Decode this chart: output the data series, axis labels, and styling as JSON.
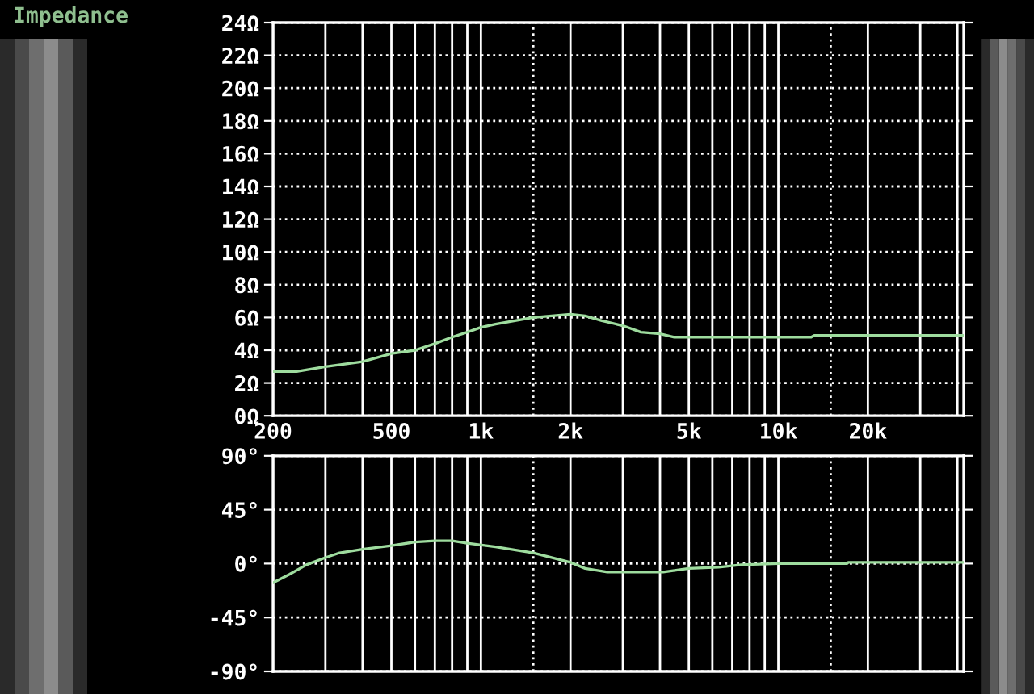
{
  "chart_data": [
    {
      "type": "line",
      "title": "Impedance",
      "log": "x",
      "grid": true,
      "x": [
        200,
        240,
        300,
        400,
        500,
        600,
        700,
        800,
        900,
        1000,
        1120,
        1500,
        1730,
        2000,
        2240,
        2550,
        3000,
        3450,
        4000,
        4470,
        6310,
        10000,
        12900,
        13200,
        42000
      ],
      "series": [
        {
          "color": "#9edc9e",
          "values": [
            2.7,
            2.7,
            3.0,
            3.3,
            3.8,
            4.0,
            4.4,
            4.8,
            5.1,
            5.4,
            5.6,
            6.0,
            6.1,
            6.2,
            6.1,
            5.8,
            5.5,
            5.1,
            5.0,
            4.8,
            4.8,
            4.8,
            4.8,
            4.9,
            4.9
          ]
        }
      ],
      "xlim": [
        200,
        42000
      ],
      "xticks": [
        200,
        {
          "value": 300,
          "label": null
        },
        {
          "value": 400,
          "label": null
        },
        500,
        {
          "value": 600,
          "label": null
        },
        {
          "value": 700,
          "label": null
        },
        {
          "value": 800,
          "label": null
        },
        {
          "value": 900,
          "label": null
        },
        {
          "value": 1000,
          "label": "1k"
        },
        {
          "value": 2000,
          "label": "2k"
        },
        {
          "value": 3000,
          "label": null
        },
        {
          "value": 4000,
          "label": null
        },
        {
          "value": 5000,
          "label": "5k"
        },
        {
          "value": 6000,
          "label": null
        },
        {
          "value": 7000,
          "label": null
        },
        {
          "value": 8000,
          "label": null
        },
        {
          "value": 9000,
          "label": null
        },
        {
          "value": 10000,
          "label": "10k"
        },
        {
          "value": 20000,
          "label": "20k"
        },
        {
          "value": 30000,
          "label": null
        },
        {
          "value": 40000,
          "label": null
        }
      ],
      "ylim": [
        0,
        24
      ],
      "yticks": [
        {
          "value": 0,
          "label": "0Ω"
        },
        {
          "value": 2,
          "label": "2Ω"
        },
        {
          "value": 4,
          "label": "4Ω"
        },
        {
          "value": 6,
          "label": "6Ω"
        },
        {
          "value": 8,
          "label": "8Ω"
        },
        {
          "value": 10,
          "label": "10Ω"
        },
        {
          "value": 12,
          "label": "12Ω"
        },
        {
          "value": 14,
          "label": "14Ω"
        },
        {
          "value": 16,
          "label": "16Ω"
        },
        {
          "value": 18,
          "label": "18Ω"
        },
        {
          "value": 20,
          "label": "20Ω"
        },
        {
          "value": 22,
          "label": "22Ω"
        },
        {
          "value": 24,
          "label": "24Ω"
        }
      ],
      "ref_lines": [
        {
          "axis": "x",
          "value": 1500,
          "color": "#ffffff",
          "line_style": "dotted"
        },
        {
          "axis": "x",
          "value": 15000,
          "color": "#ffffff",
          "line_style": "dotted"
        }
      ]
    },
    {
      "type": "line",
      "log": "x",
      "grid": true,
      "tick_labels": "y",
      "x": [
        200,
        227,
        259,
        300,
        335,
        400,
        500,
        600,
        700,
        800,
        900,
        1120,
        1500,
        2000,
        2240,
        2660,
        4100,
        5000,
        6300,
        7500,
        10000,
        17000,
        17200,
        42000
      ],
      "series": [
        {
          "color": "#9edc9e",
          "values": [
            -16,
            -9,
            -1,
            5,
            9,
            12,
            15,
            18,
            19,
            19,
            17,
            14,
            9,
            1,
            -4,
            -7,
            -7,
            -4,
            -3,
            -1,
            0,
            0,
            1,
            1
          ]
        }
      ],
      "xlim": [
        200,
        42000
      ],
      "xticks": [
        200,
        300,
        400,
        500,
        600,
        700,
        800,
        900,
        1000,
        2000,
        3000,
        4000,
        5000,
        6000,
        7000,
        8000,
        9000,
        10000,
        20000,
        30000,
        40000
      ],
      "ylim": [
        -90,
        90
      ],
      "yticks": [
        {
          "value": -90,
          "label": "-90°"
        },
        {
          "value": -45,
          "label": "-45°"
        },
        {
          "value": 0,
          "label": "0°"
        },
        {
          "value": 45,
          "label": "45°"
        },
        {
          "value": 90,
          "label": "90°"
        }
      ],
      "ref_lines": [
        {
          "axis": "x",
          "value": 1500,
          "color": "#ffffff",
          "line_style": "dotted"
        },
        {
          "axis": "x",
          "value": 15000,
          "color": "#ffffff",
          "line_style": "dotted"
        }
      ]
    }
  ]
}
